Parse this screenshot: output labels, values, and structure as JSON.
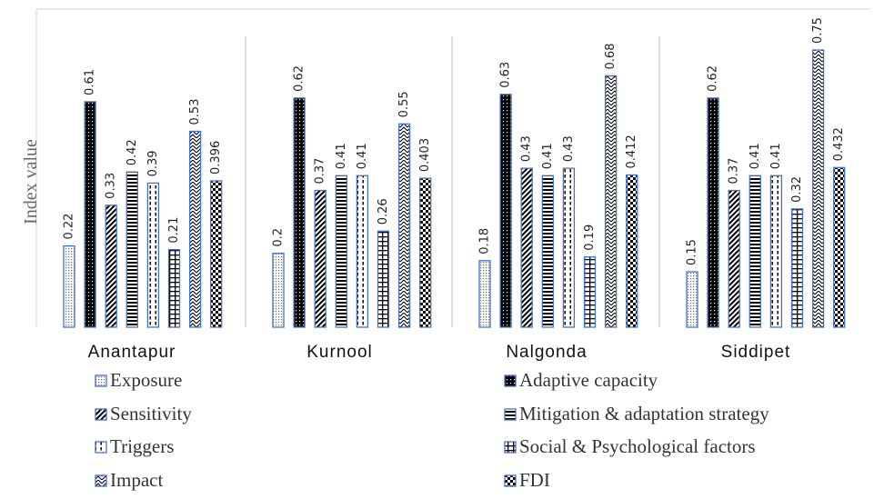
{
  "chart_data": {
    "type": "bar",
    "ylabel": "Index value",
    "categories": [
      "Anantapur",
      "Kurnool",
      "Nalgonda",
      "Siddipet"
    ],
    "ylim": [
      0,
      0.8
    ],
    "grid": false,
    "legend_position": "bottom",
    "series": [
      {
        "name": "Exposure",
        "values": [
          0.22,
          0.2,
          0.18,
          0.15
        ],
        "labels": [
          "0.22",
          "0.2",
          "0.18",
          "0.15"
        ],
        "pattern": "dots-light"
      },
      {
        "name": "Adaptive capacity",
        "values": [
          0.61,
          0.62,
          0.63,
          0.62
        ],
        "labels": [
          "0.61",
          "0.62",
          "0.63",
          "0.62"
        ],
        "pattern": "dots-dark"
      },
      {
        "name": "Sensitivity",
        "values": [
          0.33,
          0.37,
          0.43,
          0.37
        ],
        "labels": [
          "0.33",
          "0.37",
          "0.43",
          "0.37"
        ],
        "pattern": "diagonal"
      },
      {
        "name": "Mitigation & adaptation strategy",
        "values": [
          0.42,
          0.41,
          0.41,
          0.41
        ],
        "labels": [
          "0.42",
          "0.41",
          "0.41",
          "0.41"
        ],
        "pattern": "horizontal"
      },
      {
        "name": "Triggers",
        "values": [
          0.39,
          0.41,
          0.43,
          0.41
        ],
        "labels": [
          "0.39",
          "0.41",
          "0.43",
          "0.41"
        ],
        "pattern": "dashed-vertical"
      },
      {
        "name": "Social & Psychological factors",
        "values": [
          0.21,
          0.26,
          0.19,
          0.32
        ],
        "labels": [
          "0.21",
          "0.26",
          "0.19",
          "0.32"
        ],
        "pattern": "grid"
      },
      {
        "name": "Impact",
        "values": [
          0.53,
          0.55,
          0.68,
          0.75
        ],
        "labels": [
          "0.53",
          "0.55",
          "0.68",
          "0.75"
        ],
        "pattern": "zigzag"
      },
      {
        "name": "FDI",
        "values": [
          0.396,
          0.403,
          0.412,
          0.432
        ],
        "labels": [
          "0.396",
          "0.403",
          "0.412",
          "0.432"
        ],
        "pattern": "checker"
      }
    ],
    "colors": {
      "bar_outline": "#4472c4",
      "divider": "#bfbfbf",
      "axis": "#d0d0d0"
    }
  }
}
